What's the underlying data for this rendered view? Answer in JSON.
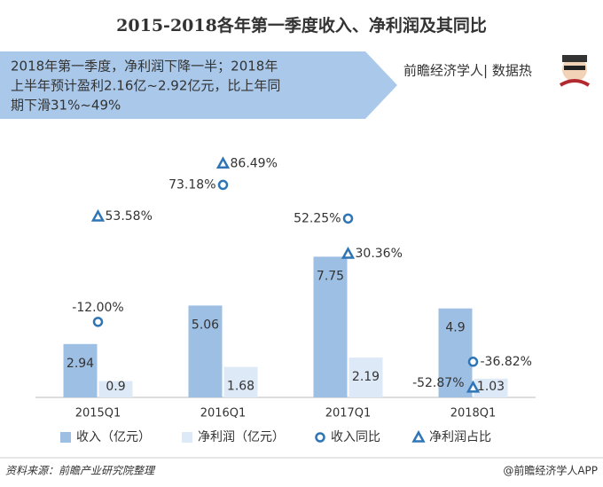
{
  "chart_data": {
    "type": "bar",
    "title": "2015-2018各年第一季度收入、净利润及其同比",
    "banner": [
      "2018年第一季度，净利润下降一半；2018年",
      "上半年预计盈利2.16亿~2.92亿元，比上年同",
      "期下滑31%~49%"
    ],
    "brand": "前瞻经济学人| 数据热",
    "categories": [
      "2015Q1",
      "2016Q1",
      "2017Q1",
      "2018Q1"
    ],
    "ylim": [
      0,
      17
    ],
    "y2lim": [
      -59,
      133
    ],
    "series": [
      {
        "name": "收入（亿元）",
        "color": "#9dbfe4",
        "values": [
          2.94,
          5.06,
          7.75,
          4.9
        ]
      },
      {
        "name": "净利润（亿元）",
        "color": "#dde9f6",
        "values": [
          0.9,
          1.68,
          2.19,
          1.03
        ]
      },
      {
        "name": "收入同比",
        "color": "#2e75b6",
        "axis": "y2",
        "values": [
          -12.0,
          73.18,
          52.25,
          -36.82
        ],
        "value_labels": [
          "-12.00%",
          "73.18%",
          "52.25%",
          "-36.82%"
        ]
      },
      {
        "name": "净利润占比",
        "color": "#2e75b6",
        "axis": "y2",
        "values": [
          53.58,
          86.49,
          30.36,
          -52.87
        ],
        "value_labels": [
          "53.58%",
          "86.49%",
          "30.36%",
          "-52.87%"
        ]
      }
    ],
    "source": "资料来源：前瞻产业研究院整理",
    "credit": "@前瞻经济学人APP"
  }
}
